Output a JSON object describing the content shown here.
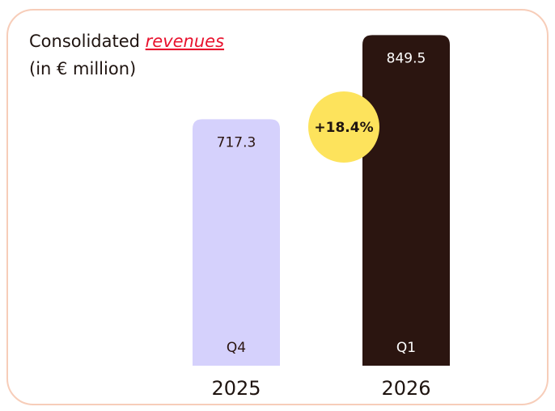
{
  "chart_data": {
    "type": "bar",
    "title": "Consolidated",
    "title_emphasis": "revenues",
    "subtitle": "(in € million)",
    "categories": [
      "Q4",
      "Q1"
    ],
    "years": [
      "2025",
      "2026"
    ],
    "values": [
      717.3,
      849.5
    ],
    "colors": [
      "#d5d1fc",
      "#2b1510"
    ],
    "label_colors": [
      "#2b1510",
      "#ffffff"
    ],
    "ylim": [
      330,
      850
    ],
    "annotation": "+18.4%",
    "annotation_color": "#fde35c"
  }
}
